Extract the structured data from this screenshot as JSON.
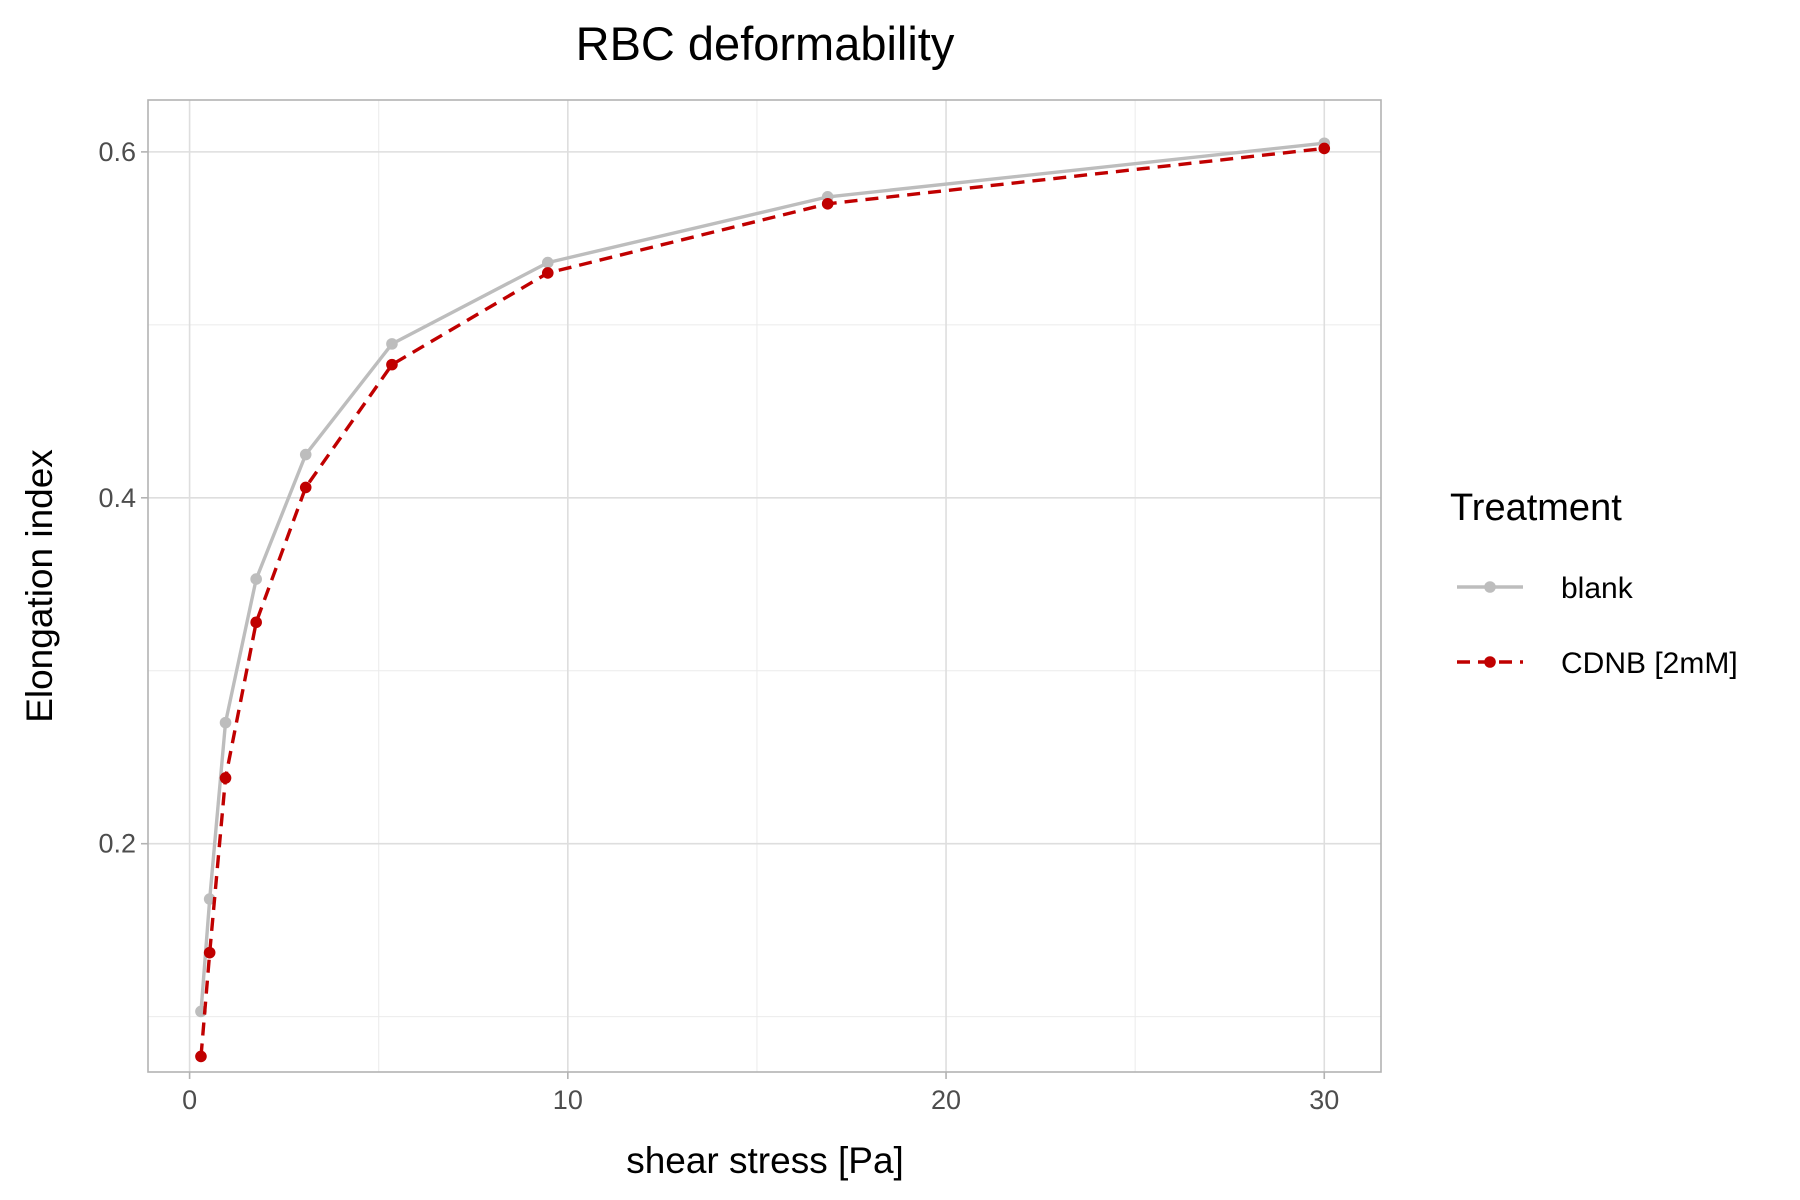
{
  "chart_data": {
    "type": "line",
    "title": "RBC deformability",
    "xlabel": "shear stress [Pa]",
    "ylabel": "Elongation index",
    "xlim": [
      -1.1,
      31.5
    ],
    "ylim": [
      0.068,
      0.63
    ],
    "x_ticks": [
      0,
      10,
      20,
      30
    ],
    "x_tick_labels": [
      "0",
      "10",
      "20",
      "30"
    ],
    "x_minor": [
      5,
      15,
      25
    ],
    "y_ticks": [
      0.2,
      0.4,
      0.6
    ],
    "y_tick_labels": [
      "0.2",
      "0.4",
      "0.6"
    ],
    "y_minor": [
      0.1,
      0.3,
      0.5
    ],
    "grid": true,
    "legend": {
      "title": "Treatment",
      "position": "right"
    },
    "series": [
      {
        "name": "blank",
        "color": "#bdbdbd",
        "line_style": "solid",
        "x": [
          0.3,
          0.53,
          0.95,
          1.76,
          3.07,
          5.35,
          9.47,
          16.87,
          30.0
        ],
        "y": [
          0.103,
          0.168,
          0.27,
          0.353,
          0.425,
          0.489,
          0.536,
          0.574,
          0.605
        ]
      },
      {
        "name": "CDNB [2mM]",
        "color": "#c00000",
        "line_style": "dashed",
        "x": [
          0.3,
          0.53,
          0.95,
          1.76,
          3.07,
          5.35,
          9.47,
          16.87,
          30.0
        ],
        "y": [
          0.077,
          0.137,
          0.238,
          0.328,
          0.406,
          0.477,
          0.53,
          0.57,
          0.602
        ]
      }
    ]
  }
}
